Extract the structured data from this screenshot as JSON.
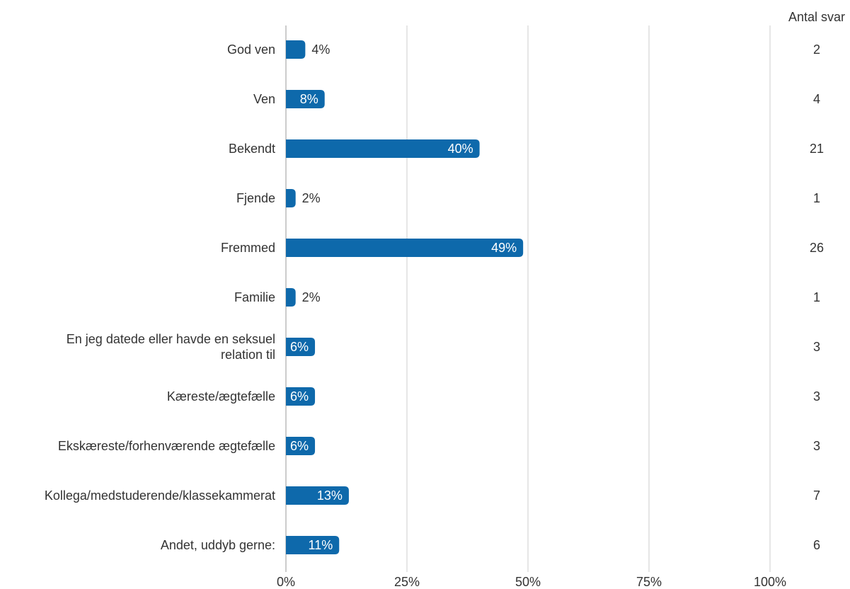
{
  "chart_data": {
    "type": "bar",
    "orientation": "horizontal",
    "categories": [
      [
        "God ven"
      ],
      [
        "Ven"
      ],
      [
        "Bekendt"
      ],
      [
        "Fjende"
      ],
      [
        "Fremmed"
      ],
      [
        "Familie"
      ],
      [
        "En jeg datede eller havde en seksuel",
        "relation til"
      ],
      [
        "Kæreste/ægtefælle"
      ],
      [
        "Ekskæreste/forhenværende ægtefælle"
      ],
      [
        "Kollega/medstuderende/klassekammerat"
      ],
      [
        "Andet, uddyb gerne:"
      ]
    ],
    "values": [
      4,
      8,
      40,
      2,
      49,
      2,
      6,
      6,
      6,
      13,
      11
    ],
    "value_labels": [
      "4%",
      "8%",
      "40%",
      "2%",
      "49%",
      "2%",
      "6%",
      "6%",
      "6%",
      "13%",
      "11%"
    ],
    "counts": [
      "2",
      "4",
      "21",
      "1",
      "26",
      "1",
      "3",
      "3",
      "3",
      "7",
      "6"
    ],
    "count_header": "Antal svar",
    "xlim": [
      0,
      100
    ],
    "x_ticks": [
      0,
      25,
      50,
      75,
      100
    ],
    "x_tick_labels": [
      "0%",
      "25%",
      "50%",
      "75%",
      "100%"
    ],
    "grid": true,
    "colors": {
      "bar": "#0e69ab",
      "grid": "#cccccc",
      "text": "#333333",
      "inside_label": "#ffffff"
    }
  }
}
